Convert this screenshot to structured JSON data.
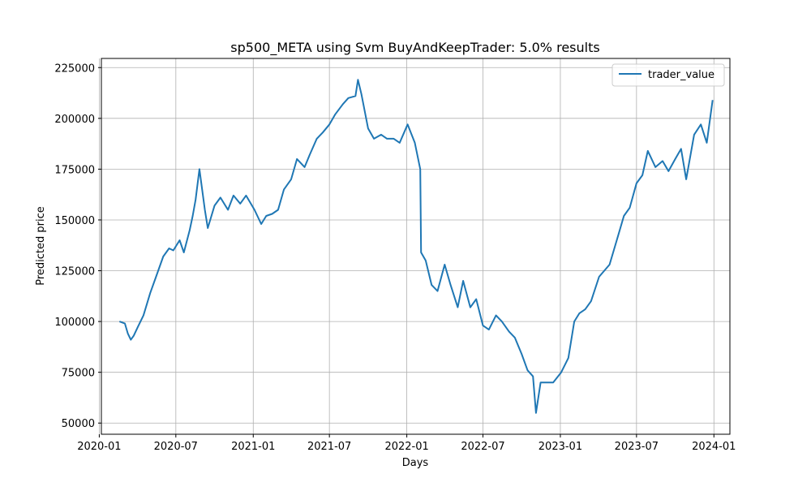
{
  "chart_data": {
    "type": "line",
    "title": "sp500_META using Svm BuyAndKeepTrader: 5.0% results",
    "xlabel": "Days",
    "ylabel": "Predicted price",
    "grid": true,
    "legend_position": "top-right",
    "x_tick_labels": [
      "2020-01",
      "2020-07",
      "2021-01",
      "2021-07",
      "2022-01",
      "2022-07",
      "2023-01",
      "2023-07",
      "2024-01"
    ],
    "y_ticks": [
      50000,
      75000,
      100000,
      125000,
      150000,
      175000,
      200000,
      225000
    ],
    "y_tick_labels": [
      "50000",
      "75000",
      "100000",
      "125000",
      "150000",
      "175000",
      "200000",
      "225000"
    ],
    "xlim": [
      "2020-01-06",
      "2024-02-08"
    ],
    "ylim": [
      44500,
      229500
    ],
    "series": [
      {
        "name": "trader_value",
        "color": "#1f77b4",
        "x": [
          "2020-02-18",
          "2020-03-02",
          "2020-03-09",
          "2020-03-16",
          "2020-03-23",
          "2020-04-01",
          "2020-04-15",
          "2020-05-01",
          "2020-05-15",
          "2020-06-01",
          "2020-06-15",
          "2020-06-25",
          "2020-07-10",
          "2020-07-20",
          "2020-08-03",
          "2020-08-10",
          "2020-08-17",
          "2020-08-26",
          "2020-09-08",
          "2020-09-15",
          "2020-10-01",
          "2020-10-15",
          "2020-11-02",
          "2020-11-15",
          "2020-12-01",
          "2020-12-15",
          "2021-01-04",
          "2021-01-20",
          "2021-02-01",
          "2021-02-15",
          "2021-03-01",
          "2021-03-15",
          "2021-04-01",
          "2021-04-15",
          "2021-05-03",
          "2021-05-15",
          "2021-06-01",
          "2021-06-15",
          "2021-07-01",
          "2021-07-15",
          "2021-08-02",
          "2021-08-15",
          "2021-09-01",
          "2021-09-07",
          "2021-09-15",
          "2021-10-01",
          "2021-10-15",
          "2021-11-01",
          "2021-11-15",
          "2021-12-01",
          "2021-12-15",
          "2022-01-03",
          "2022-01-20",
          "2022-02-02",
          "2022-02-04",
          "2022-02-15",
          "2022-03-01",
          "2022-03-15",
          "2022-04-01",
          "2022-04-15",
          "2022-05-02",
          "2022-05-15",
          "2022-06-01",
          "2022-06-15",
          "2022-07-01",
          "2022-07-15",
          "2022-08-01",
          "2022-08-15",
          "2022-09-01",
          "2022-09-15",
          "2022-10-01",
          "2022-10-15",
          "2022-10-28",
          "2022-11-04",
          "2022-11-15",
          "2022-12-01",
          "2022-12-15",
          "2023-01-03",
          "2023-01-20",
          "2023-02-03",
          "2023-02-15",
          "2023-03-01",
          "2023-03-15",
          "2023-04-03",
          "2023-04-28",
          "2023-05-15",
          "2023-06-01",
          "2023-06-15",
          "2023-07-01",
          "2023-07-15",
          "2023-07-28",
          "2023-08-15",
          "2023-09-01",
          "2023-09-15",
          "2023-10-01",
          "2023-10-15",
          "2023-10-27",
          "2023-11-15",
          "2023-12-01",
          "2023-12-15",
          "2023-12-29"
        ],
        "values": [
          100000,
          99000,
          94000,
          91000,
          93000,
          97000,
          103000,
          114000,
          122000,
          132000,
          136000,
          135000,
          140000,
          134000,
          145000,
          152000,
          160000,
          175000,
          155000,
          146000,
          157000,
          161000,
          155000,
          162000,
          158000,
          162000,
          155000,
          148000,
          152000,
          153000,
          155000,
          165000,
          170000,
          180000,
          176000,
          182000,
          190000,
          193000,
          197000,
          202000,
          207000,
          210000,
          211000,
          219000,
          212000,
          195000,
          190000,
          192000,
          190000,
          190000,
          188000,
          197000,
          188000,
          175000,
          134000,
          130000,
          118000,
          115000,
          128000,
          118000,
          107000,
          120000,
          107000,
          111000,
          98000,
          96000,
          103000,
          100000,
          95000,
          92000,
          84000,
          76000,
          73000,
          55000,
          70000,
          70000,
          70000,
          75000,
          82000,
          100000,
          104000,
          106000,
          110000,
          122000,
          128000,
          140000,
          152000,
          156000,
          168000,
          172000,
          184000,
          176000,
          179000,
          174000,
          180000,
          185000,
          170000,
          192000,
          197000,
          188000,
          209000
        ]
      }
    ]
  }
}
